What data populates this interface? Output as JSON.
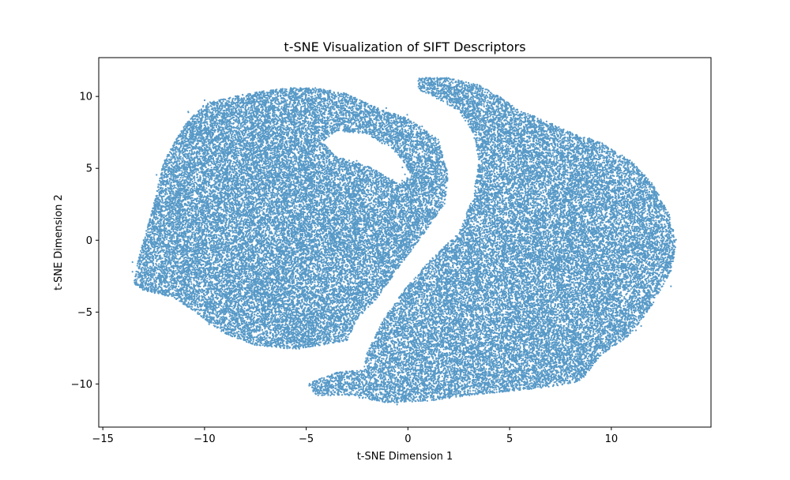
{
  "chart_data": {
    "type": "scatter",
    "title": "t-SNE Visualization of SIFT Descriptors",
    "xlabel": "t-SNE Dimension 1",
    "ylabel": "t-SNE Dimension 2",
    "xlim": [
      -15.2,
      14.9
    ],
    "ylim": [
      -13.0,
      12.7
    ],
    "xticks": [
      -15,
      -10,
      -5,
      0,
      5,
      10
    ],
    "yticks": [
      -10,
      -5,
      0,
      5,
      10
    ],
    "xtick_labels": [
      "−15",
      "−10",
      "−5",
      "0",
      "5",
      "10"
    ],
    "ytick_labels": [
      "−10",
      "−5",
      "0",
      "5",
      "10"
    ],
    "grid": false,
    "legend": "none",
    "marker_color": "#1f77b4",
    "point_alpha": 0.75,
    "point_count_estimate": 60000,
    "cluster_regions": [
      {
        "name": "left cluster",
        "outline": [
          [
            -13.5,
            -3.0
          ],
          [
            -13.2,
            -1.0
          ],
          [
            -12.5,
            2.5
          ],
          [
            -12.0,
            5.5
          ],
          [
            -11.0,
            8.0
          ],
          [
            -10.0,
            9.5
          ],
          [
            -8.0,
            10.2
          ],
          [
            -6.0,
            10.6
          ],
          [
            -4.5,
            10.6
          ],
          [
            -3.0,
            10.2
          ],
          [
            -1.5,
            9.2
          ],
          [
            0.0,
            8.5
          ],
          [
            1.5,
            7.0
          ],
          [
            2.0,
            4.5
          ],
          [
            1.8,
            2.5
          ],
          [
            0.8,
            0.5
          ],
          [
            -0.5,
            -2.0
          ],
          [
            -1.5,
            -4.0
          ],
          [
            -2.5,
            -5.5
          ],
          [
            -3.0,
            -7.0
          ],
          [
            -5.5,
            -7.6
          ],
          [
            -7.5,
            -7.3
          ],
          [
            -9.0,
            -6.5
          ],
          [
            -10.5,
            -5.0
          ],
          [
            -11.5,
            -4.0
          ],
          [
            -13.0,
            -3.5
          ]
        ],
        "holes": [
          [
            [
              -4.2,
              6.8
            ],
            [
              -3.5,
              7.6
            ],
            [
              -2.0,
              7.4
            ],
            [
              -0.5,
              6.0
            ],
            [
              0.2,
              4.5
            ],
            [
              -0.5,
              4.0
            ],
            [
              -2.0,
              5.2
            ],
            [
              -3.5,
              5.8
            ]
          ]
        ]
      },
      {
        "name": "right cluster",
        "outline": [
          [
            0.5,
            11.3
          ],
          [
            2.0,
            11.3
          ],
          [
            3.5,
            10.8
          ],
          [
            4.5,
            10.0
          ],
          [
            5.5,
            9.0
          ],
          [
            6.5,
            8.5
          ],
          [
            8.0,
            7.5
          ],
          [
            9.5,
            6.8
          ],
          [
            11.0,
            5.5
          ],
          [
            12.0,
            4.0
          ],
          [
            12.8,
            2.0
          ],
          [
            13.2,
            0.0
          ],
          [
            13.0,
            -2.0
          ],
          [
            12.0,
            -4.5
          ],
          [
            11.0,
            -6.5
          ],
          [
            9.5,
            -8.0
          ],
          [
            8.5,
            -9.8
          ],
          [
            7.0,
            -10.2
          ],
          [
            5.0,
            -10.5
          ],
          [
            3.0,
            -10.8
          ],
          [
            1.0,
            -11.2
          ],
          [
            -1.0,
            -11.3
          ],
          [
            -3.0,
            -10.8
          ],
          [
            -4.5,
            -10.8
          ],
          [
            -5.0,
            -10.0
          ],
          [
            -3.5,
            -9.2
          ],
          [
            -2.2,
            -9.0
          ],
          [
            -2.0,
            -7.8
          ],
          [
            -1.2,
            -5.5
          ],
          [
            -0.2,
            -3.5
          ],
          [
            1.0,
            -1.5
          ],
          [
            2.5,
            0.5
          ],
          [
            3.2,
            3.0
          ],
          [
            3.5,
            5.5
          ],
          [
            3.2,
            7.5
          ],
          [
            2.5,
            9.0
          ],
          [
            1.5,
            9.8
          ],
          [
            0.5,
            10.5
          ]
        ],
        "holes": []
      }
    ]
  }
}
